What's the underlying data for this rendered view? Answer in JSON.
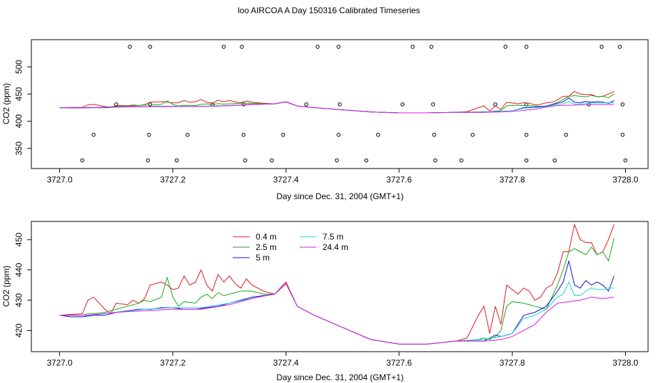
{
  "figure": {
    "title": "loo AIRCOA A  Day 150316  Calibrated Timeseries"
  },
  "chart_data": [
    {
      "type": "scatter",
      "id": "top",
      "xlabel": "Day since Dec. 31, 2004 (GMT+1)",
      "ylabel": "CO2 (ppm)",
      "xlim": [
        3726.95,
        3728.04
      ],
      "ylim": [
        313,
        550
      ],
      "xticks": [
        3727.0,
        3727.2,
        3727.4,
        3727.6,
        3727.8,
        3728.0
      ],
      "xtick_labels": [
        "3727.0",
        "3727.2",
        "3727.4",
        "3727.6",
        "3727.8",
        "3728.0"
      ],
      "yticks": [
        350,
        400,
        450,
        500
      ],
      "ytick_labels": [
        "350",
        "400",
        "450",
        "500"
      ],
      "grid": false,
      "lines_from": "bottom",
      "points": {
        "marker": "open-circle",
        "color": "#000000",
        "values": [
          {
            "x": 3727.124,
            "y": 537
          },
          {
            "x": 3727.16,
            "y": 537
          },
          {
            "x": 3727.29,
            "y": 537
          },
          {
            "x": 3727.322,
            "y": 537
          },
          {
            "x": 3727.456,
            "y": 537
          },
          {
            "x": 3727.493,
            "y": 537
          },
          {
            "x": 3727.624,
            "y": 537
          },
          {
            "x": 3727.657,
            "y": 537
          },
          {
            "x": 3727.788,
            "y": 537
          },
          {
            "x": 3727.825,
            "y": 537
          },
          {
            "x": 3727.958,
            "y": 537
          },
          {
            "x": 3727.99,
            "y": 537
          },
          {
            "x": 3727.1,
            "y": 431
          },
          {
            "x": 3727.16,
            "y": 431
          },
          {
            "x": 3727.27,
            "y": 431
          },
          {
            "x": 3727.325,
            "y": 431
          },
          {
            "x": 3727.436,
            "y": 431
          },
          {
            "x": 3727.495,
            "y": 431
          },
          {
            "x": 3727.606,
            "y": 431
          },
          {
            "x": 3727.66,
            "y": 431
          },
          {
            "x": 3727.77,
            "y": 431
          },
          {
            "x": 3727.825,
            "y": 431
          },
          {
            "x": 3727.935,
            "y": 431
          },
          {
            "x": 3727.995,
            "y": 431
          },
          {
            "x": 3727.06,
            "y": 375
          },
          {
            "x": 3727.158,
            "y": 375
          },
          {
            "x": 3727.226,
            "y": 375
          },
          {
            "x": 3727.325,
            "y": 375
          },
          {
            "x": 3727.395,
            "y": 375
          },
          {
            "x": 3727.493,
            "y": 375
          },
          {
            "x": 3727.563,
            "y": 375
          },
          {
            "x": 3727.662,
            "y": 375
          },
          {
            "x": 3727.73,
            "y": 375
          },
          {
            "x": 3727.825,
            "y": 375
          },
          {
            "x": 3727.895,
            "y": 375
          },
          {
            "x": 3727.995,
            "y": 375
          },
          {
            "x": 3727.04,
            "y": 328
          },
          {
            "x": 3727.156,
            "y": 328
          },
          {
            "x": 3727.207,
            "y": 328
          },
          {
            "x": 3727.328,
            "y": 328
          },
          {
            "x": 3727.375,
            "y": 328
          },
          {
            "x": 3727.49,
            "y": 328
          },
          {
            "x": 3727.542,
            "y": 328
          },
          {
            "x": 3727.664,
            "y": 328
          },
          {
            "x": 3727.71,
            "y": 328
          },
          {
            "x": 3727.825,
            "y": 328
          },
          {
            "x": 3727.875,
            "y": 328
          },
          {
            "x": 3728.0,
            "y": 328
          }
        ]
      }
    },
    {
      "type": "line",
      "id": "bottom",
      "xlabel": "Day since Dec. 31, 2004 (GMT+1)",
      "ylabel": "CO2 (ppm)",
      "xlim": [
        3726.95,
        3728.04
      ],
      "ylim": [
        413,
        456
      ],
      "xticks": [
        3727.0,
        3727.2,
        3727.4,
        3727.6,
        3727.8,
        3728.0
      ],
      "xtick_labels": [
        "3727.0",
        "3727.2",
        "3727.4",
        "3727.6",
        "3727.8",
        "3728.0"
      ],
      "yticks": [
        420,
        430,
        440,
        450
      ],
      "ytick_labels": [
        "420",
        "430",
        "440",
        "450"
      ],
      "grid": false,
      "legend": {
        "placement": "top-center",
        "columns": 2
      },
      "series": [
        {
          "name": "0.4 m",
          "color": "#e0181b",
          "x": [
            3727.0,
            3727.02,
            3727.04,
            3727.05,
            3727.06,
            3727.08,
            3727.09,
            3727.1,
            3727.12,
            3727.13,
            3727.14,
            3727.15,
            3727.16,
            3727.18,
            3727.19,
            3727.2,
            3727.21,
            3727.22,
            3727.23,
            3727.24,
            3727.25,
            3727.26,
            3727.27,
            3727.28,
            3727.29,
            3727.3,
            3727.31,
            3727.32,
            3727.33,
            3727.34,
            3727.36,
            3727.38,
            3727.4,
            3727.42,
            3727.45,
            3727.5,
            3727.55,
            3727.6,
            3727.65,
            3727.7,
            3727.72,
            3727.74,
            3727.75,
            3727.76,
            3727.77,
            3727.78,
            3727.79,
            3727.8,
            3727.81,
            3727.82,
            3727.83,
            3727.84,
            3727.85,
            3727.86,
            3727.87,
            3727.88,
            3727.89,
            3727.9,
            3727.91,
            3727.92,
            3727.93,
            3727.94,
            3727.95,
            3727.96,
            3727.97,
            3727.98
          ],
          "values": [
            425,
            425.3,
            425.5,
            430,
            431,
            427,
            425.5,
            429,
            428.5,
            430,
            429,
            430.5,
            435,
            436,
            435,
            433.5,
            434,
            438,
            435,
            436,
            440,
            435,
            433,
            438.5,
            436,
            438,
            435.5,
            434,
            437,
            435,
            433,
            432,
            436,
            428,
            425,
            421,
            417,
            415.5,
            415.5,
            416.5,
            417.5,
            425,
            428,
            419,
            428,
            422,
            435,
            433.5,
            432,
            434,
            433,
            430,
            431,
            434,
            435,
            439,
            446,
            446,
            455,
            450,
            449,
            449,
            445,
            446,
            450,
            455
          ]
        },
        {
          "name": "2.5 m",
          "color": "#1aa91a",
          "x": [
            3727.0,
            3727.02,
            3727.04,
            3727.05,
            3727.06,
            3727.08,
            3727.1,
            3727.12,
            3727.14,
            3727.15,
            3727.16,
            3727.18,
            3727.19,
            3727.2,
            3727.21,
            3727.22,
            3727.24,
            3727.25,
            3727.26,
            3727.27,
            3727.28,
            3727.29,
            3727.3,
            3727.32,
            3727.34,
            3727.36,
            3727.38,
            3727.4,
            3727.42,
            3727.45,
            3727.5,
            3727.55,
            3727.6,
            3727.65,
            3727.7,
            3727.74,
            3727.75,
            3727.76,
            3727.77,
            3727.78,
            3727.79,
            3727.8,
            3727.82,
            3727.84,
            3727.86,
            3727.88,
            3727.89,
            3727.9,
            3727.91,
            3727.92,
            3727.93,
            3727.94,
            3727.95,
            3727.96,
            3727.97,
            3727.98
          ],
          "values": [
            425,
            425,
            425,
            425.5,
            425.5,
            426,
            427,
            428,
            429,
            430,
            429.5,
            431,
            437.5,
            431,
            428,
            429.5,
            429,
            431,
            432,
            430.5,
            432.5,
            431.5,
            432,
            433,
            433,
            432,
            432,
            435.5,
            428,
            425,
            421,
            417,
            415.5,
            415.5,
            416.5,
            417,
            417.5,
            417,
            418,
            420,
            428,
            429.5,
            429,
            428,
            427,
            435,
            440,
            446,
            447,
            446,
            445,
            447.5,
            445,
            446,
            443,
            450.5
          ]
        },
        {
          "name": "5 m",
          "color": "#0e0ed0",
          "x": [
            3727.0,
            3727.02,
            3727.04,
            3727.06,
            3727.08,
            3727.1,
            3727.12,
            3727.14,
            3727.16,
            3727.18,
            3727.2,
            3727.22,
            3727.24,
            3727.26,
            3727.28,
            3727.3,
            3727.32,
            3727.34,
            3727.36,
            3727.38,
            3727.4,
            3727.42,
            3727.45,
            3727.5,
            3727.55,
            3727.6,
            3727.65,
            3727.7,
            3727.75,
            3727.77,
            3727.78,
            3727.8,
            3727.82,
            3727.84,
            3727.86,
            3727.88,
            3727.89,
            3727.9,
            3727.91,
            3727.92,
            3727.93,
            3727.94,
            3727.95,
            3727.96,
            3727.97,
            3727.98
          ],
          "values": [
            425,
            424.5,
            424.5,
            425,
            425,
            426,
            426.5,
            427,
            427,
            427.5,
            427.5,
            427,
            427,
            427.5,
            428,
            429,
            430,
            431,
            431.5,
            432,
            435.5,
            428,
            425,
            421,
            417,
            415.5,
            415.5,
            416.5,
            416.5,
            418.5,
            418,
            419,
            425,
            426,
            428,
            433,
            436,
            443,
            435,
            434,
            436.5,
            435,
            436,
            435,
            433,
            438
          ]
        },
        {
          "name": "7.5 m",
          "color": "#16d6d6",
          "x": [
            3727.0,
            3727.05,
            3727.1,
            3727.15,
            3727.2,
            3727.25,
            3727.3,
            3727.35,
            3727.38,
            3727.4,
            3727.42,
            3727.45,
            3727.5,
            3727.55,
            3727.6,
            3727.65,
            3727.7,
            3727.75,
            3727.78,
            3727.8,
            3727.82,
            3727.84,
            3727.86,
            3727.88,
            3727.89,
            3727.9,
            3727.91,
            3727.92,
            3727.93,
            3727.94,
            3727.95,
            3727.96,
            3727.97,
            3727.98
          ],
          "values": [
            425,
            425,
            426,
            427,
            427.5,
            427.5,
            429,
            431,
            432,
            435.5,
            428,
            425,
            421,
            417,
            415.5,
            415.5,
            416.5,
            417,
            418,
            419,
            424,
            425,
            427,
            431,
            432,
            436,
            431.5,
            431.5,
            433,
            434,
            433.5,
            433.5,
            434,
            434
          ]
        },
        {
          "name": "24.4 m",
          "color": "#e018e0",
          "x": [
            3727.0,
            3727.05,
            3727.1,
            3727.15,
            3727.2,
            3727.25,
            3727.3,
            3727.35,
            3727.38,
            3727.4,
            3727.42,
            3727.45,
            3727.5,
            3727.55,
            3727.6,
            3727.65,
            3727.7,
            3727.75,
            3727.78,
            3727.8,
            3727.82,
            3727.84,
            3727.86,
            3727.88,
            3727.9,
            3727.92,
            3727.94,
            3727.96,
            3727.98
          ],
          "values": [
            425,
            425,
            426,
            426.5,
            427,
            427,
            428.5,
            431,
            432,
            435.5,
            428,
            425,
            421,
            417,
            415.5,
            415.5,
            416.5,
            416.5,
            417,
            418,
            420,
            422,
            426,
            429,
            429.5,
            430,
            431,
            430.5,
            431
          ]
        }
      ]
    }
  ]
}
